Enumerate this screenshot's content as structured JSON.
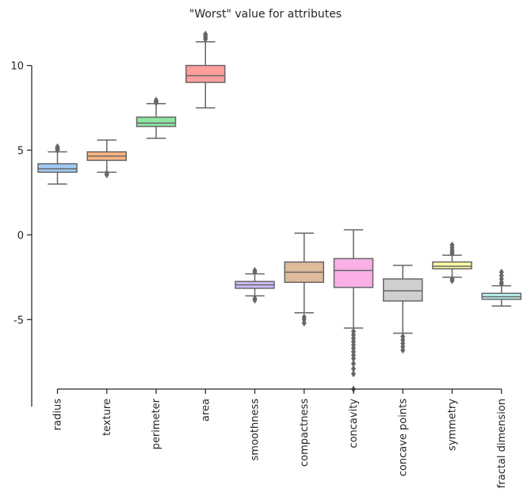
{
  "chart_data": {
    "type": "box",
    "title": "\"Worst\" value for attributes",
    "xlabel": "",
    "ylabel": "",
    "ylim": [
      -9.1,
      11.9
    ],
    "yticks": [
      10,
      5,
      0,
      -5
    ],
    "ytick_labels": [
      "10",
      "5",
      "0",
      "-5"
    ],
    "categories": [
      "radius",
      "texture",
      "perimeter",
      "area",
      "smoothness",
      "compactness",
      "concavity",
      "concave points",
      "symmetry",
      "fractal dimension"
    ],
    "colors": [
      "#a1c9f4",
      "#ffb482",
      "#8de5a1",
      "#ff9f9b",
      "#d0bbff",
      "#debb9b",
      "#fab0e4",
      "#cfcfcf",
      "#fffea3",
      "#b9f2f0"
    ],
    "line_color": "#666666",
    "grid": false,
    "boxes": [
      {
        "min": 3.0,
        "q1": 3.7,
        "median": 3.9,
        "q3": 4.2,
        "max": 4.9,
        "outliers": [
          5.0,
          5.05,
          5.1,
          5.15,
          5.2
        ]
      },
      {
        "min": 3.7,
        "q1": 4.4,
        "median": 4.65,
        "q3": 4.9,
        "max": 5.6,
        "outliers": [
          3.55,
          3.65
        ]
      },
      {
        "min": 5.7,
        "q1": 6.4,
        "median": 6.6,
        "q3": 6.95,
        "max": 7.75,
        "outliers": [
          7.8,
          7.85,
          7.9,
          7.95
        ]
      },
      {
        "min": 7.5,
        "q1": 9.0,
        "median": 9.4,
        "q3": 10.0,
        "max": 11.4,
        "outliers": [
          11.55,
          11.65,
          11.75,
          11.85
        ]
      },
      {
        "min": -3.6,
        "q1": -3.15,
        "median": -2.95,
        "q3": -2.75,
        "max": -2.3,
        "outliers": [
          -2.2,
          -2.1,
          -3.75,
          -3.85
        ]
      },
      {
        "min": -4.6,
        "q1": -2.8,
        "median": -2.2,
        "q3": -1.6,
        "max": 0.1,
        "outliers": [
          -4.85,
          -5.0,
          -5.2
        ]
      },
      {
        "min": -5.5,
        "q1": -3.1,
        "median": -2.1,
        "q3": -1.4,
        "max": 0.3,
        "outliers": [
          -5.7,
          -5.9,
          -6.1,
          -6.3,
          -6.5,
          -6.7,
          -6.9,
          -7.1,
          -7.3,
          -7.6,
          -7.9,
          -8.2,
          -9.1
        ]
      },
      {
        "min": -5.8,
        "q1": -3.9,
        "median": -3.3,
        "q3": -2.6,
        "max": -1.8,
        "outliers": [
          -6.0,
          -6.2,
          -6.4,
          -6.6,
          -6.8
        ]
      },
      {
        "min": -2.5,
        "q1": -2.0,
        "median": -1.85,
        "q3": -1.6,
        "max": -1.2,
        "outliers": [
          -0.6,
          -0.75,
          -0.9,
          -1.0,
          -1.1,
          -2.6,
          -2.7
        ]
      },
      {
        "min": -4.2,
        "q1": -3.8,
        "median": -3.65,
        "q3": -3.45,
        "max": -3.0,
        "outliers": [
          -2.2,
          -2.4,
          -2.6,
          -2.8,
          -2.9
        ]
      }
    ]
  }
}
